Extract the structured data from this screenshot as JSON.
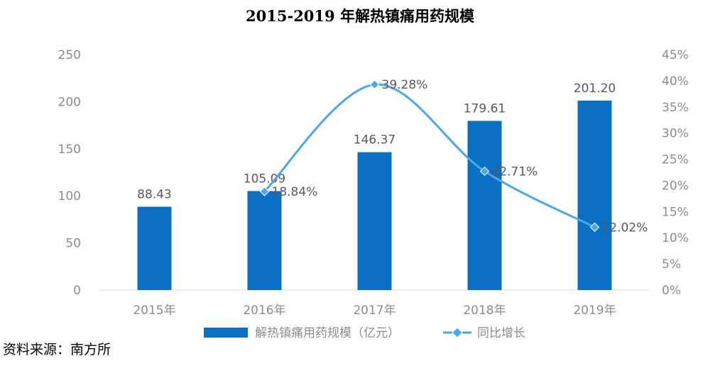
{
  "chart_data": {
    "type": "bar",
    "title": "2015-2019 年解热镇痛用药规模",
    "categories": [
      "2015年",
      "2016年",
      "2017年",
      "2018年",
      "2019年"
    ],
    "series": [
      {
        "name": "解热镇痛用药规模（亿元）",
        "type": "bar",
        "axis": "left",
        "color": "#0b6fc3",
        "values": [
          88.43,
          105.09,
          146.37,
          179.61,
          201.2
        ],
        "labels": [
          "88.43",
          "105.09",
          "146.37",
          "179.61",
          "201.20"
        ]
      },
      {
        "name": "同比增长",
        "type": "line",
        "axis": "right",
        "color": "#4aa8ea",
        "values": [
          null,
          18.84,
          39.28,
          22.71,
          12.02
        ],
        "labels": [
          "",
          "18.84%",
          "39.28%",
          "22.71%",
          "12.02%"
        ]
      }
    ],
    "y_left": {
      "min": 0,
      "max": 250,
      "ticks": [
        0,
        50,
        100,
        150,
        200,
        250
      ],
      "tick_labels": [
        "0",
        "50",
        "100",
        "150",
        "200",
        "250"
      ]
    },
    "y_right": {
      "min": 0,
      "max": 45,
      "ticks": [
        0,
        5,
        10,
        15,
        20,
        25,
        30,
        35,
        40,
        45
      ],
      "tick_labels": [
        "0%",
        "5%",
        "10%",
        "15%",
        "20%",
        "25%",
        "30%",
        "35%",
        "40%",
        "45%"
      ]
    },
    "grid": false,
    "legend_position": "bottom"
  },
  "source": "资料来源：南方所"
}
